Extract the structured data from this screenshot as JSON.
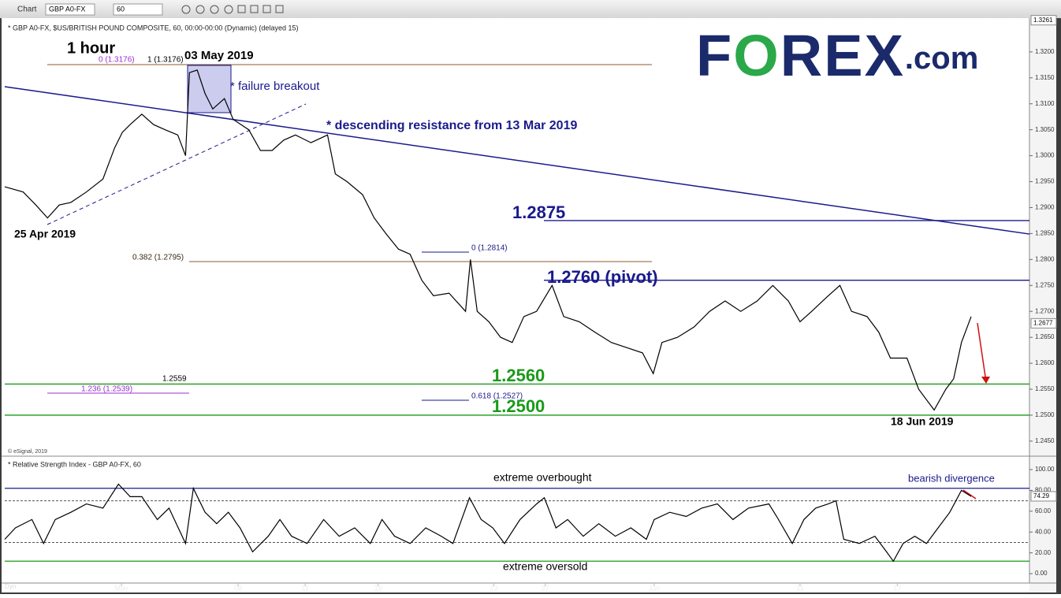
{
  "toolbar": {
    "app": "Chart",
    "symbol": "GBP A0-FX",
    "interval": "60"
  },
  "header": "* GBP A0-FX, $US/BRITISH POUND COMPOSITE, 60, 00:00-00:00 (Dynamic) (delayed 15)",
  "credit": "© eSignal, 2019",
  "rsi_title": "* Relative Strength Index - GBP A0-FX, 60",
  "footer": "Dyn",
  "logo": {
    "parts": [
      "F",
      "O",
      "REX",
      ".com"
    ]
  },
  "chart_data": [
    {
      "type": "line",
      "color": "#000000",
      "x": [
        0,
        19,
        32,
        44,
        56,
        68,
        84,
        101,
        113,
        121,
        129,
        141,
        153,
        165,
        178,
        186,
        190,
        198,
        206,
        214,
        226,
        235,
        243,
        251,
        263,
        275,
        287,
        299,
        315,
        332,
        340,
        352,
        368,
        380,
        392,
        405,
        417,
        429,
        441,
        457,
        474,
        479,
        486,
        498,
        510,
        522,
        534,
        547,
        563,
        575,
        591,
        607,
        624,
        640,
        656,
        667,
        676,
        692,
        709,
        725,
        741,
        757,
        774,
        790,
        806,
        818,
        830,
        847,
        859,
        871,
        887,
        899,
        911,
        928,
        940,
        956,
        968,
        976,
        984,
        994
      ],
      "values": [
        1.294,
        1.293,
        1.2905,
        1.288,
        1.2905,
        1.291,
        1.293,
        1.2955,
        1.3015,
        1.3045,
        1.306,
        1.308,
        1.306,
        1.305,
        1.304,
        1.3,
        1.316,
        1.3165,
        1.312,
        1.309,
        1.311,
        1.307,
        1.306,
        1.305,
        1.301,
        1.301,
        1.303,
        1.304,
        1.3025,
        1.304,
        1.2965,
        1.295,
        1.2925,
        1.288,
        1.285,
        1.282,
        1.281,
        1.276,
        1.273,
        1.2735,
        1.27,
        1.28,
        1.27,
        1.268,
        1.265,
        1.264,
        1.269,
        1.27,
        1.275,
        1.269,
        1.268,
        1.266,
        1.264,
        1.263,
        1.262,
        1.258,
        1.264,
        1.265,
        1.267,
        1.27,
        1.272,
        1.27,
        1.272,
        1.275,
        1.272,
        1.268,
        1.27,
        1.273,
        1.275,
        1.27,
        1.269,
        1.266,
        1.261,
        1.261,
        1.255,
        1.251,
        1.255,
        1.257,
        1.264,
        1.269
      ],
      "xlim": [
        0,
        1054
      ],
      "xticks": [
        {
          "value": 120,
          "label": "May"
        },
        {
          "value": 240,
          "label": "08"
        },
        {
          "value": 309,
          "label": "11"
        },
        {
          "value": 384,
          "label": "16"
        },
        {
          "value": 503,
          "label": "23"
        },
        {
          "value": 556,
          "label": "27"
        },
        {
          "value": 668,
          "label": "Jun"
        },
        {
          "value": 818,
          "label": "11"
        },
        {
          "value": 918,
          "label": "17"
        }
      ],
      "ylim": [
        1.2424,
        1.3259
      ],
      "yticks": [
        {
          "value": 1.245,
          "label": "1.2450"
        },
        {
          "value": 1.25,
          "label": "1.2500"
        },
        {
          "value": 1.255,
          "label": "1.2550"
        },
        {
          "value": 1.26,
          "label": "1.2600"
        },
        {
          "value": 1.265,
          "label": "1.2650"
        },
        {
          "value": 1.27,
          "label": "1.2700"
        },
        {
          "value": 1.275,
          "label": "1.2750"
        },
        {
          "value": 1.28,
          "label": "1.2800"
        },
        {
          "value": 1.285,
          "label": "1.2850"
        },
        {
          "value": 1.29,
          "label": "1.2900"
        },
        {
          "value": 1.295,
          "label": "1.2950"
        },
        {
          "value": 1.3,
          "label": "1.3000"
        },
        {
          "value": 1.305,
          "label": "1.3050"
        },
        {
          "value": 1.31,
          "label": "1.3100"
        },
        {
          "value": 1.315,
          "label": "1.3150"
        },
        {
          "value": 1.32,
          "label": "1.3200"
        }
      ],
      "last_price": 1.2677,
      "top_price": 1.3261,
      "levels": [
        {
          "value": 1.2875,
          "label": "1.2875",
          "color": "#1a1a8c"
        },
        {
          "value": 1.276,
          "label": "1.2760 (pivot)",
          "color": "#1a1a8c"
        },
        {
          "value": 1.256,
          "label": "1.2560",
          "color": "#1a9a1a"
        },
        {
          "value": 1.25,
          "label": "1.2500",
          "color": "#1a9a1a"
        }
      ],
      "resistance_line": {
        "x": [
          0,
          1054
        ],
        "values": [
          1.3133,
          1.2849
        ],
        "color": "#1a1a8c"
      },
      "annotations": [
        "1 hour",
        "03 May 2019",
        "* failure breakout",
        "* descending resistance from 13 Mar 2019",
        "25 Apr 2019",
        "18 Jun 2019",
        "0 (1.3176)",
        "1 (1.3176)",
        "0.382 (1.2795)",
        "1.2559",
        "1.236 (1.2539)",
        "0 (1.2814)",
        "0.618 (1.2527)"
      ]
    },
    {
      "type": "line",
      "color": "#000000",
      "x": [
        0,
        11,
        28,
        40,
        52,
        68,
        84,
        101,
        117,
        129,
        141,
        157,
        169,
        186,
        194,
        206,
        218,
        230,
        242,
        255,
        271,
        283,
        295,
        311,
        328,
        344,
        360,
        376,
        388,
        401,
        417,
        433,
        449,
        461,
        478,
        490,
        502,
        514,
        530,
        547,
        555,
        567,
        579,
        595,
        611,
        628,
        644,
        660,
        668,
        684,
        701,
        717,
        733,
        749,
        765,
        786,
        794,
        810,
        822,
        834,
        847,
        855,
        863,
        879,
        895,
        907,
        914,
        924,
        936,
        948,
        960,
        972,
        984,
        994
      ],
      "values": [
        33,
        44,
        52,
        29,
        52,
        59,
        67,
        63,
        86,
        74,
        74,
        52,
        63,
        29,
        82,
        59,
        48,
        59,
        44,
        21,
        36,
        52,
        36,
        29,
        52,
        36,
        44,
        29,
        52,
        36,
        29,
        44,
        36,
        29,
        73,
        52,
        44,
        29,
        52,
        67,
        73,
        44,
        52,
        36,
        48,
        36,
        44,
        33,
        52,
        59,
        55,
        63,
        67,
        52,
        63,
        67,
        55,
        29,
        52,
        63,
        67,
        70,
        33,
        29,
        36,
        21,
        12,
        29,
        36,
        29,
        44,
        59,
        80,
        74.29
      ],
      "xlim": [
        0,
        1054
      ],
      "ylim": [
        -9,
        110.6
      ],
      "yticks": [
        {
          "value": 0,
          "label": "0.00"
        },
        {
          "value": 20,
          "label": "20.00"
        },
        {
          "value": 40,
          "label": "40.00"
        },
        {
          "value": 60,
          "label": "60.00"
        },
        {
          "value": 80,
          "label": "80.00"
        },
        {
          "value": 100,
          "label": "100.00"
        }
      ],
      "last_value": 74.29,
      "levels": [
        {
          "value": 82,
          "color": "#1a1a8c",
          "dashed": false
        },
        {
          "value": 70,
          "color": "#555555",
          "dashed": true
        },
        {
          "value": 30,
          "color": "#555555",
          "dashed": true
        },
        {
          "value": 12,
          "color": "#1a9a1a",
          "dashed": false
        }
      ],
      "annotations": [
        "extreme overbought",
        "extreme oversold",
        "bearish divergence"
      ]
    }
  ]
}
